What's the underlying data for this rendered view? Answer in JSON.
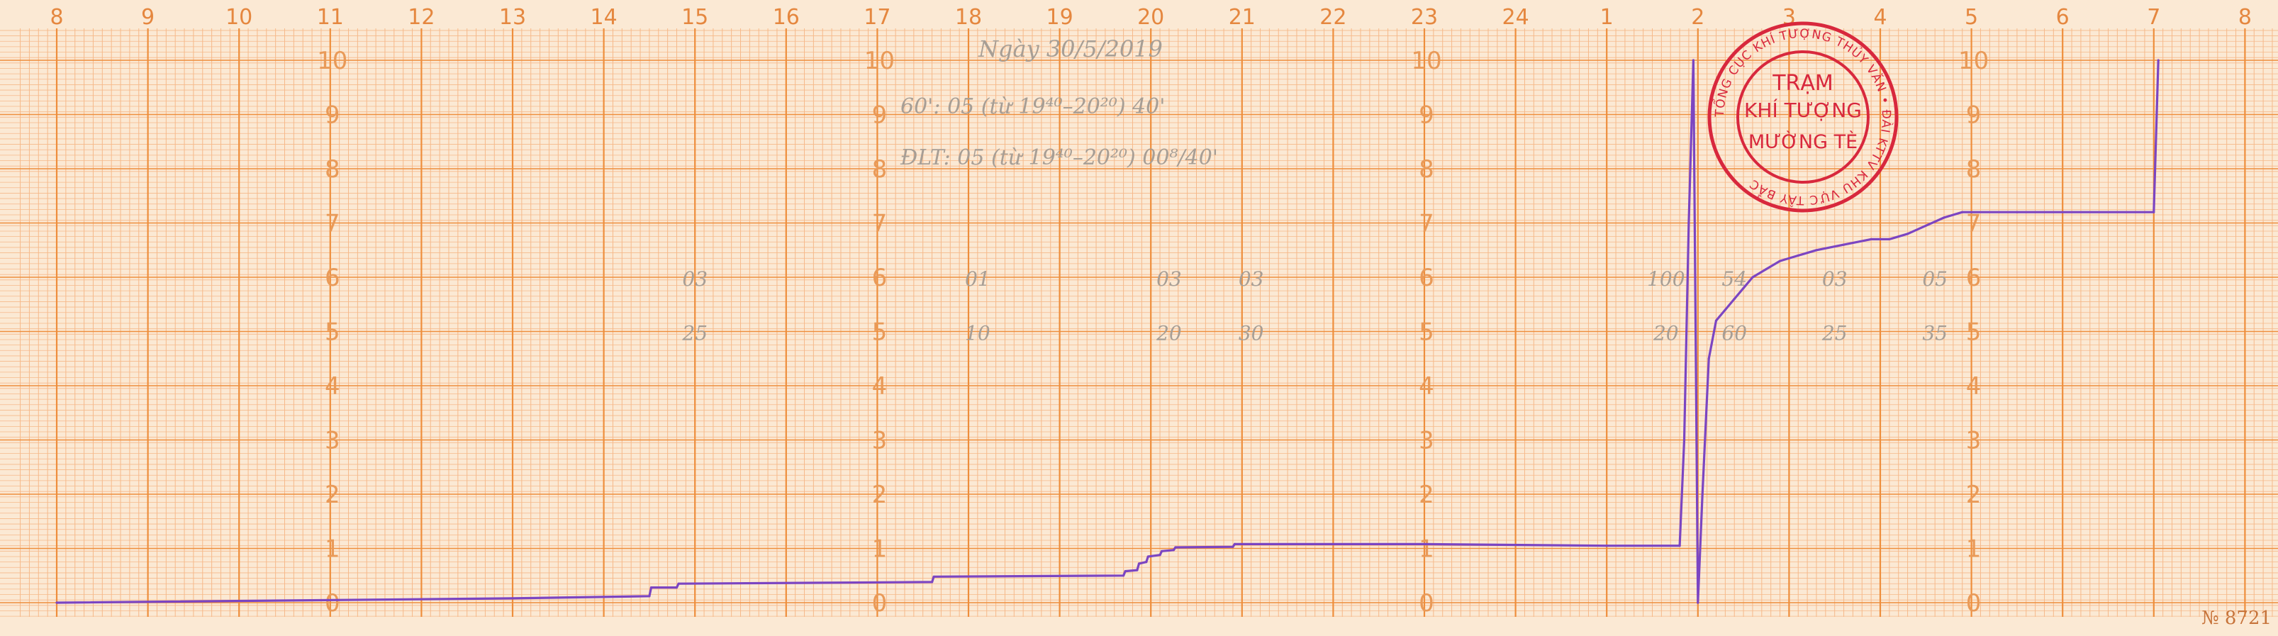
{
  "chart_data": {
    "type": "line",
    "x_unit": "hour of day",
    "hour_ticks": [
      "8",
      "9",
      "10",
      "11",
      "12",
      "13",
      "14",
      "15",
      "16",
      "17",
      "18",
      "19",
      "20",
      "21",
      "22",
      "23",
      "24",
      "1",
      "2",
      "3",
      "4",
      "5",
      "6",
      "7",
      "8"
    ],
    "y_ticks": [
      "0",
      "1",
      "2",
      "3",
      "4",
      "5",
      "6",
      "7",
      "8",
      "9",
      "10"
    ],
    "ylim": [
      0,
      10
    ],
    "grid": true,
    "series": [
      {
        "color": "#7b45c2",
        "points": [
          [
            8.0,
            0.0
          ],
          [
            13.0,
            0.08
          ],
          [
            14.5,
            0.12
          ],
          [
            14.52,
            0.28
          ],
          [
            14.8,
            0.28
          ],
          [
            14.82,
            0.35
          ],
          [
            17.6,
            0.38
          ],
          [
            17.62,
            0.48
          ],
          [
            19.7,
            0.5
          ],
          [
            19.72,
            0.58
          ],
          [
            19.85,
            0.6
          ],
          [
            19.87,
            0.72
          ],
          [
            19.95,
            0.75
          ],
          [
            19.97,
            0.85
          ],
          [
            20.1,
            0.88
          ],
          [
            20.12,
            0.95
          ],
          [
            20.25,
            0.97
          ],
          [
            20.27,
            1.02
          ],
          [
            20.9,
            1.03
          ],
          [
            20.92,
            1.08
          ],
          [
            23.0,
            1.08
          ],
          [
            25.0,
            1.05
          ],
          [
            25.8,
            1.05
          ],
          [
            25.85,
            3.0
          ],
          [
            25.9,
            7.0
          ],
          [
            25.95,
            10.0
          ],
          [
            26.0,
            0.0
          ],
          [
            26.05,
            2.0
          ],
          [
            26.12,
            4.5
          ],
          [
            26.2,
            5.2
          ],
          [
            26.3,
            5.4
          ],
          [
            26.4,
            5.6
          ],
          [
            26.5,
            5.8
          ],
          [
            26.6,
            6.0
          ],
          [
            26.75,
            6.15
          ],
          [
            26.9,
            6.3
          ],
          [
            27.1,
            6.4
          ],
          [
            27.3,
            6.5
          ],
          [
            27.6,
            6.6
          ],
          [
            27.9,
            6.7
          ],
          [
            28.1,
            6.7
          ],
          [
            28.3,
            6.8
          ],
          [
            28.5,
            6.95
          ],
          [
            28.7,
            7.1
          ],
          [
            28.9,
            7.2
          ],
          [
            29.5,
            7.2
          ],
          [
            31.0,
            7.2
          ],
          [
            31.05,
            10.0
          ]
        ]
      }
    ],
    "annotations": {
      "header_line_1": "Ngày 30/5/2019",
      "header_line_2": "60': 05 (từ 19⁴⁰–20²⁰) 40'",
      "header_line_3": "ĐLT: 05 (từ 19⁴⁰–20²⁰) 00⁸/40'",
      "hourly_marks": [
        {
          "hour": 15.0,
          "upper": "03",
          "lower": "25"
        },
        {
          "hour": 18.1,
          "upper": "01",
          "lower": "10"
        },
        {
          "hour": 20.2,
          "upper": "03",
          "lower": "20"
        },
        {
          "hour": 21.1,
          "upper": "03",
          "lower": "30"
        },
        {
          "hour": 25.65,
          "upper": "100",
          "lower": "20"
        },
        {
          "hour": 26.4,
          "upper": "54",
          "lower": "60"
        },
        {
          "hour": 27.5,
          "upper": "03",
          "lower": "25"
        },
        {
          "hour": 28.6,
          "upper": "05",
          "lower": "35"
        }
      ]
    },
    "stamp": {
      "outer_ring": "TỔNG CỤC KHÍ TƯỢNG THỦY VĂN • ĐÀI KTTV KHU VỰC TÂY BẮC",
      "line1": "TRẠM",
      "line2": "KHÍ TƯỢNG",
      "line3": "MƯỜNG TÈ"
    },
    "serial_number": "№ 8721"
  },
  "colors": {
    "paper": "#fbe9d4",
    "grid_minor": "#f6b98a",
    "grid_major": "#ee8e3c",
    "trace": "#7b45c2",
    "stamp": "#d8283d",
    "pencil": "#a79e95"
  }
}
